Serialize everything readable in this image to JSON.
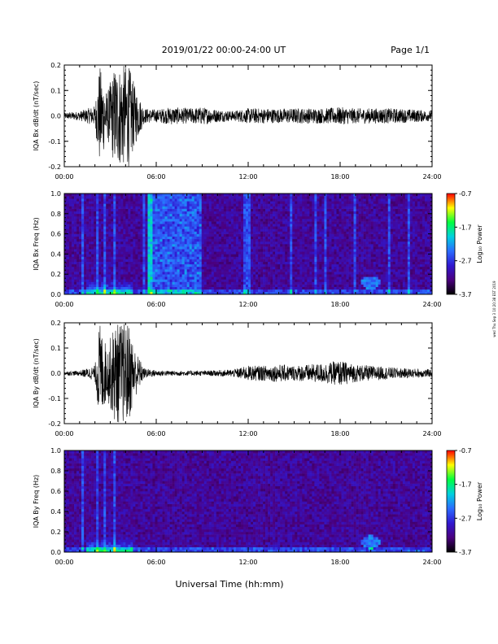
{
  "header": {
    "title": "2019/01/22  00:00-24:00 UT",
    "page": "Page 1/1"
  },
  "footer": {
    "xlabel": "Universal Time (hh:mm)",
    "side_stamp": "wed Thu Sep 3 10:20:38 EST 2019"
  },
  "colors": {
    "background": "#ffffff",
    "trace": "#000000",
    "colormap": [
      "#000000",
      "#4b007f",
      "#3018d0",
      "#2b6cff",
      "#00d0e0",
      "#00ff40",
      "#ffff00",
      "#ff0000"
    ]
  },
  "chart_data": [
    {
      "type": "line",
      "id": "bx_waveform",
      "ylabel": "IQA Bx dB/dt (nT/sec)",
      "x_unit": "hours UT",
      "xlim": [
        0,
        24
      ],
      "ylim": [
        -0.2,
        0.2
      ],
      "xticks": [
        "00:00",
        "06:00",
        "12:00",
        "18:00",
        "24:00"
      ],
      "yticks": [
        "-0.2",
        "-0.1",
        "0.0",
        "0.1",
        "0.2"
      ],
      "envelope": {
        "x": [
          0,
          1,
          2,
          2.3,
          2.8,
          3.3,
          3.6,
          4.2,
          4.6,
          5.2,
          6,
          7,
          8,
          9,
          10,
          11,
          12,
          13,
          14,
          15,
          16,
          17,
          18,
          19,
          20,
          21,
          22,
          23,
          24
        ],
        "amplitude": [
          0.012,
          0.018,
          0.04,
          0.2,
          0.09,
          0.2,
          0.2,
          0.2,
          0.12,
          0.03,
          0.025,
          0.035,
          0.03,
          0.035,
          0.025,
          0.02,
          0.03,
          0.03,
          0.028,
          0.03,
          0.03,
          0.03,
          0.035,
          0.03,
          0.03,
          0.03,
          0.028,
          0.025,
          0.02
        ]
      }
    },
    {
      "type": "heatmap",
      "id": "bx_spectrogram",
      "ylabel": "IQA Bx Freq (Hz)",
      "xlim": [
        0,
        24
      ],
      "ylim": [
        0,
        1.0
      ],
      "xticks": [
        "00:00",
        "06:00",
        "12:00",
        "18:00",
        "24:00"
      ],
      "yticks": [
        "0.0",
        "0.2",
        "0.4",
        "0.6",
        "0.8",
        "1.0"
      ],
      "colorbar": {
        "label": "Log₁₀ Power",
        "range": [
          -3.7,
          -0.7
        ],
        "ticks": [
          "-0.7",
          "-1.7",
          "-2.7",
          "-3.7"
        ]
      },
      "features": {
        "elevated_band": [
          5.5,
          9.0
        ],
        "vertical_streaks": [
          1.2,
          2.2,
          2.7,
          3.3,
          5.2,
          5.6,
          11.7,
          12.0,
          14.8,
          16.4,
          17.1,
          19.0,
          21.2,
          22.5
        ],
        "low_freq_blob": {
          "x": 20.0,
          "y": 0.12
        }
      }
    },
    {
      "type": "line",
      "id": "by_waveform",
      "ylabel": "IQA By dB/dt (nT/sec)",
      "x_unit": "hours UT",
      "xlim": [
        0,
        24
      ],
      "ylim": [
        -0.2,
        0.2
      ],
      "xticks": [
        "00:00",
        "06:00",
        "12:00",
        "18:00",
        "24:00"
      ],
      "yticks": [
        "-0.2",
        "-0.1",
        "0.0",
        "0.1",
        "0.2"
      ],
      "envelope": {
        "x": [
          0,
          1,
          2,
          2.3,
          2.8,
          3.3,
          3.6,
          4.2,
          4.6,
          5.2,
          6,
          7,
          8,
          9,
          10,
          11,
          12,
          13,
          14,
          15,
          16,
          17,
          18,
          19,
          20,
          21,
          22,
          23,
          24
        ],
        "amplitude": [
          0.008,
          0.01,
          0.03,
          0.2,
          0.1,
          0.2,
          0.2,
          0.2,
          0.1,
          0.02,
          0.012,
          0.01,
          0.01,
          0.01,
          0.012,
          0.015,
          0.03,
          0.03,
          0.035,
          0.03,
          0.035,
          0.04,
          0.05,
          0.035,
          0.03,
          0.025,
          0.02,
          0.018,
          0.015
        ]
      }
    },
    {
      "type": "heatmap",
      "id": "by_spectrogram",
      "ylabel": "IQA By Freq (Hz)",
      "xlim": [
        0,
        24
      ],
      "ylim": [
        0,
        1.0
      ],
      "xticks": [
        "00:00",
        "06:00",
        "12:00",
        "18:00",
        "24:00"
      ],
      "yticks": [
        "0.0",
        "0.2",
        "0.4",
        "0.6",
        "0.8",
        "1.0"
      ],
      "colorbar": {
        "label": "Log₁₀ Power",
        "range": [
          -3.7,
          -0.7
        ],
        "ticks": [
          "-0.7",
          "-1.7",
          "-2.7",
          "-3.7"
        ]
      },
      "features": {
        "elevated_band": [
          0,
          0
        ],
        "vertical_streaks": [
          1.2,
          2.2,
          2.7,
          3.3
        ],
        "low_freq_blob": {
          "x": 20.0,
          "y": 0.1
        }
      }
    }
  ]
}
